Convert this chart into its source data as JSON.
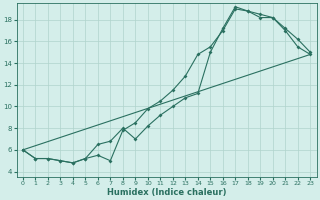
{
  "xlabel": "Humidex (Indice chaleur)",
  "bg_color": "#d4eeea",
  "line_color": "#2a7060",
  "grid_color": "#b0d4cc",
  "xlim": [
    -0.5,
    23.5
  ],
  "ylim": [
    3.5,
    19.5
  ],
  "xticks": [
    0,
    1,
    2,
    3,
    4,
    5,
    6,
    7,
    8,
    9,
    10,
    11,
    12,
    13,
    14,
    15,
    16,
    17,
    18,
    19,
    20,
    21,
    22,
    23
  ],
  "yticks": [
    4,
    6,
    8,
    10,
    12,
    14,
    16,
    18
  ],
  "series1_x": [
    0,
    1,
    2,
    3,
    4,
    5,
    6,
    7,
    8,
    9,
    10,
    11,
    12,
    13,
    14,
    15,
    16,
    17,
    18,
    19,
    20,
    21,
    22,
    23
  ],
  "series1_y": [
    6.0,
    5.2,
    5.2,
    5.0,
    4.8,
    5.2,
    5.5,
    5.0,
    7.8,
    8.5,
    9.8,
    10.5,
    11.5,
    12.8,
    14.8,
    15.5,
    17.0,
    19.0,
    18.8,
    18.2,
    18.2,
    17.0,
    15.5,
    14.8
  ],
  "series2_x": [
    0,
    1,
    2,
    3,
    4,
    5,
    6,
    7,
    8,
    9,
    10,
    11,
    12,
    13,
    14,
    15,
    16,
    17,
    18,
    19,
    20,
    21,
    22,
    23
  ],
  "series2_y": [
    6.0,
    5.2,
    5.2,
    5.0,
    4.8,
    5.2,
    6.5,
    6.8,
    8.0,
    7.0,
    8.2,
    9.2,
    10.0,
    10.8,
    11.2,
    15.0,
    17.2,
    19.2,
    18.8,
    18.5,
    18.2,
    17.2,
    16.2,
    15.0
  ],
  "series3_x": [
    0,
    23
  ],
  "series3_y": [
    6.0,
    14.8
  ]
}
